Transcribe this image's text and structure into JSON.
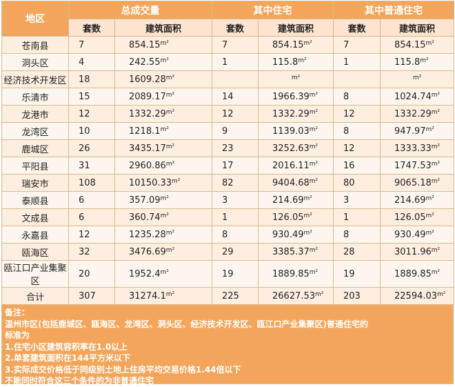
{
  "header": {
    "region": "地区",
    "groups": [
      "总成交量",
      "其中住宅",
      "其中普通住宅"
    ],
    "sub": [
      "套数",
      "建筑面积",
      "套数",
      "建筑面积",
      "套数",
      "建筑面积"
    ]
  },
  "unit": "m²",
  "rows": [
    {
      "name": "苍南县",
      "c1": "7",
      "a1": "854.15",
      "c2": "7",
      "a2": "854.15",
      "c3": "7",
      "a3": "854.15"
    },
    {
      "name": "洞头区",
      "c1": "4",
      "a1": "242.55",
      "c2": "1",
      "a2": "115.8",
      "c3": "1",
      "a3": "115.8"
    },
    {
      "name": "经济技术开发区",
      "c1": "18",
      "a1": "1609.28",
      "c2": "",
      "a2": "",
      "c3": "",
      "a3": ""
    },
    {
      "name": "乐清市",
      "c1": "15",
      "a1": "2089.17",
      "c2": "14",
      "a2": "1966.39",
      "c3": "8",
      "a3": "1024.74"
    },
    {
      "name": "龙港市",
      "c1": "12",
      "a1": "1332.29",
      "c2": "12",
      "a2": "1332.29",
      "c3": "12",
      "a3": "1332.29"
    },
    {
      "name": "龙湾区",
      "c1": "10",
      "a1": "1218.1",
      "c2": "9",
      "a2": "1139.03",
      "c3": "8",
      "a3": "947.97"
    },
    {
      "name": "鹿城区",
      "c1": "26",
      "a1": "3435.17",
      "c2": "23",
      "a2": "3252.63",
      "c3": "12",
      "a3": "1333.33"
    },
    {
      "name": "平阳县",
      "c1": "31",
      "a1": "2960.86",
      "c2": "17",
      "a2": "2016.11",
      "c3": "16",
      "a3": "1747.53"
    },
    {
      "name": "瑞安市",
      "c1": "108",
      "a1": "10150.33",
      "c2": "82",
      "a2": "9404.68",
      "c3": "80",
      "a3": "9065.18"
    },
    {
      "name": "泰顺县",
      "c1": "6",
      "a1": "357.09",
      "c2": "3",
      "a2": "214.69",
      "c3": "3",
      "a3": "214.69"
    },
    {
      "name": "文成县",
      "c1": "6",
      "a1": "360.74",
      "c2": "1",
      "a2": "126.05",
      "c3": "1",
      "a3": "126.05"
    },
    {
      "name": "永嘉县",
      "c1": "12",
      "a1": "1235.28",
      "c2": "8",
      "a2": "930.49",
      "c3": "8",
      "a3": "930.49"
    },
    {
      "name": "瓯海区",
      "c1": "32",
      "a1": "3476.69",
      "c2": "29",
      "a2": "3385.37",
      "c3": "28",
      "a3": "3011.96"
    },
    {
      "name": "瓯江口产业集聚区",
      "c1": "20",
      "a1": "1952.4",
      "c2": "19",
      "a2": "1889.85",
      "c3": "19",
      "a3": "1889.85"
    },
    {
      "name": "合计",
      "c1": "307",
      "a1": "31274.1",
      "c2": "225",
      "a2": "26627.53",
      "c3": "203",
      "a3": "22594.03"
    }
  ],
  "notes": [
    "备注：",
    "温州市区(包括鹿城区、瓯海区、龙湾区、洞头区、经济技术开发区、瓯江口产业集聚区)普通住宅的",
    "标准为",
    "1.住宅小区建筑容积率在1.0以上",
    "2.单套建筑面积在144平方米以下",
    "3.实际成交价格低于同级别土地上住房平均交易价格1.44倍以下",
    "不能同时符合这三个条件的为非普通住宅"
  ]
}
